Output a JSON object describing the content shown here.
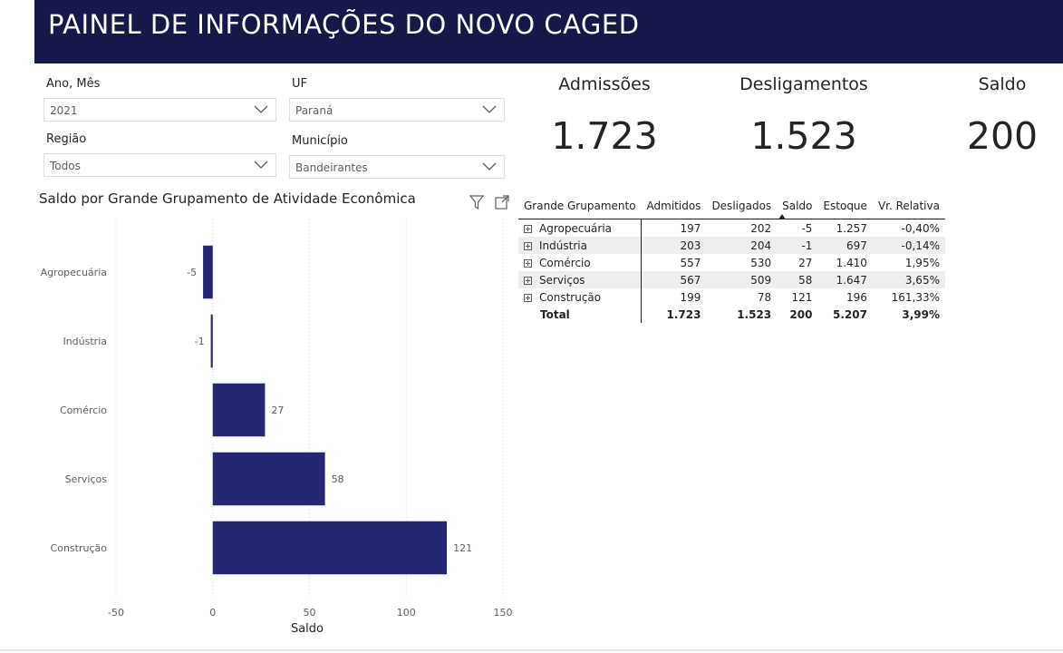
{
  "header": {
    "title": "PAINEL DE INFORMAÇÕES DO NOVO CAGED"
  },
  "filters": {
    "ano_mes": {
      "label": "Ano, Mês",
      "value": "2021"
    },
    "uf": {
      "label": "UF",
      "value": "Paraná"
    },
    "regiao": {
      "label": "Região",
      "value": "Todos"
    },
    "municipio": {
      "label": "Município",
      "value": "Bandeirantes"
    }
  },
  "kpis": {
    "admissoes": {
      "label": "Admissões",
      "value": "1.723"
    },
    "desligamentos": {
      "label": "Desligamentos",
      "value": "1.523"
    },
    "saldo": {
      "label": "Saldo",
      "value": "200"
    }
  },
  "chart_title": "Saldo por Grande Grupamento de Atividade Econômica",
  "chart_data": {
    "type": "bar",
    "orientation": "horizontal",
    "title": "Saldo por Grande Grupamento de Atividade Econômica",
    "categories": [
      "Agropecuária",
      "Indústria",
      "Comércio",
      "Serviços",
      "Construção"
    ],
    "values": [
      -5,
      -1,
      27,
      58,
      121
    ],
    "data_labels": [
      "-5",
      "-1",
      "27",
      "58",
      "121"
    ],
    "xlabel": "Saldo",
    "ylabel": "",
    "xlim": [
      -50,
      150
    ],
    "xticks": [
      -50,
      0,
      50,
      100,
      150
    ],
    "xtick_labels": [
      "-50",
      "0",
      "50",
      "100",
      "150"
    ],
    "grid": true,
    "color": "#252674"
  },
  "table": {
    "headers": [
      "Grande Grupamento",
      "Admitidos",
      "Desligados",
      "Saldo",
      "Estoque",
      "Vr. Relativa"
    ],
    "rows": [
      [
        "Agropecuária",
        "197",
        "202",
        "-5",
        "1.257",
        "-0,40%"
      ],
      [
        "Indústria",
        "203",
        "204",
        "-1",
        "697",
        "-0,14%"
      ],
      [
        "Comércio",
        "557",
        "530",
        "27",
        "1.410",
        "1,95%"
      ],
      [
        "Serviços",
        "567",
        "509",
        "58",
        "1.647",
        "3,65%"
      ],
      [
        "Construção",
        "199",
        "78",
        "121",
        "196",
        "161,33%"
      ]
    ],
    "total": [
      "Total",
      "1.723",
      "1.523",
      "200",
      "5.207",
      "3,99%"
    ]
  },
  "colors": {
    "header_bg": "#151848",
    "bar": "#252674"
  }
}
